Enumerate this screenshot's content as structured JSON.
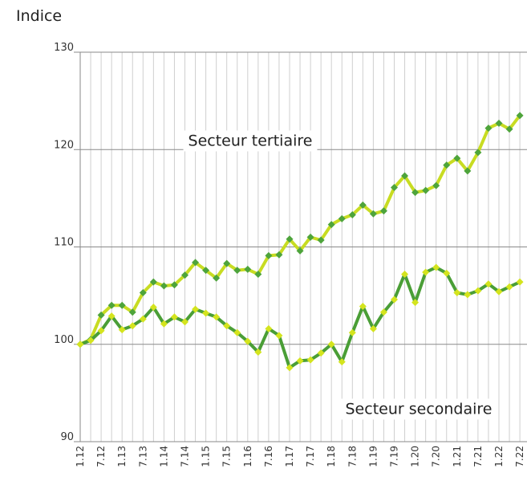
{
  "chart_data": {
    "type": "line",
    "title": "Indice",
    "categories": [
      "1.12",
      null,
      "7.12",
      null,
      "1.13",
      null,
      "7.13",
      null,
      "1.14",
      null,
      "7.14",
      null,
      "1.15",
      null,
      "7.15",
      null,
      "1.16",
      null,
      "7.16",
      null,
      "1.17",
      null,
      "7.17",
      null,
      "1.18",
      null,
      "7.18",
      null,
      "1.19",
      null,
      "7.19",
      null,
      "1.20",
      null,
      "7.20",
      null,
      "1.21",
      null,
      "7.21",
      null,
      "1.22",
      null,
      "7.22"
    ],
    "series": [
      {
        "name": "Secteur tertiaire",
        "color": "#c8dc22",
        "marker_color": "#4ea43b",
        "values": [
          100,
          100.5,
          103,
          104,
          104,
          103.3,
          105.3,
          106.4,
          106,
          106.1,
          107.1,
          108.4,
          107.6,
          106.8,
          108.3,
          107.6,
          107.7,
          107.2,
          109.1,
          109.2,
          110.8,
          109.6,
          111,
          110.7,
          112.3,
          112.9,
          113.3,
          114.3,
          113.4,
          113.7,
          116.1,
          117.3,
          115.6,
          115.8,
          116.3,
          118.4,
          119.1,
          117.8,
          119.7,
          122.2,
          122.7,
          122.1,
          123.5
        ]
      },
      {
        "name": "Secteur secondaire",
        "color": "#4a9e36",
        "marker_color": "#d4e41e",
        "values": [
          100,
          100.4,
          101.4,
          102.9,
          101.5,
          101.9,
          102.6,
          103.8,
          102.1,
          102.8,
          102.3,
          103.6,
          103.2,
          102.8,
          101.9,
          101.2,
          100.3,
          99.2,
          101.6,
          100.9,
          97.6,
          98.3,
          98.4,
          99.1,
          100,
          98.2,
          101.2,
          103.9,
          101.6,
          103.3,
          104.6,
          107.2,
          104.3,
          107.4,
          107.9,
          107.3,
          105.3,
          105.1,
          105.5,
          106.2,
          105.4,
          105.9,
          106.4
        ]
      }
    ],
    "ylim": [
      90,
      130
    ],
    "yticks": [
      90,
      100,
      110,
      120,
      130
    ],
    "grid": true
  }
}
